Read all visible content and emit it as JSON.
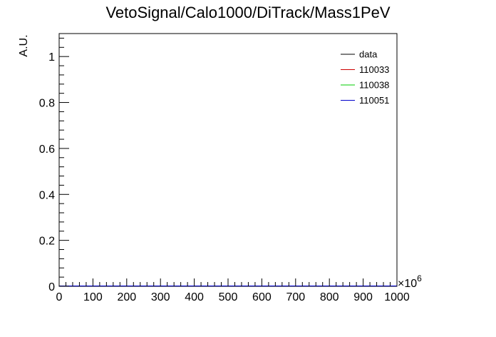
{
  "chart_data": {
    "type": "line",
    "title": "VetoSignal/Calo1000/DiTrack/Mass1PeV",
    "xlabel": "",
    "ylabel": "A.U.",
    "x_multiplier_label": "×10",
    "x_multiplier_exponent": "6",
    "xlim": [
      0,
      1000
    ],
    "ylim": [
      0,
      1.1
    ],
    "x_ticks": [
      0,
      100,
      200,
      300,
      400,
      500,
      600,
      700,
      800,
      900,
      1000
    ],
    "x_tick_labels": [
      "0",
      "100",
      "200",
      "300",
      "400",
      "500",
      "600",
      "700",
      "800",
      "900",
      "1000"
    ],
    "y_ticks": [
      0,
      0.2,
      0.4,
      0.6,
      0.8,
      1
    ],
    "y_tick_labels": [
      "0",
      "0.2",
      "0.4",
      "0.6",
      "0.8",
      "1"
    ],
    "grid": false,
    "legend_position": "top-right",
    "series": [
      {
        "name": "data",
        "color": "#000000",
        "x": [
          0,
          1000
        ],
        "y": [
          0,
          0
        ]
      },
      {
        "name": "110033",
        "color": "#cc0000",
        "x": [
          0,
          1000
        ],
        "y": [
          0,
          0
        ]
      },
      {
        "name": "110038",
        "color": "#00cc00",
        "x": [
          0,
          1000
        ],
        "y": [
          0,
          0
        ]
      },
      {
        "name": "110051",
        "color": "#0000cc",
        "x": [
          0,
          1000
        ],
        "y": [
          0,
          0
        ]
      }
    ]
  }
}
